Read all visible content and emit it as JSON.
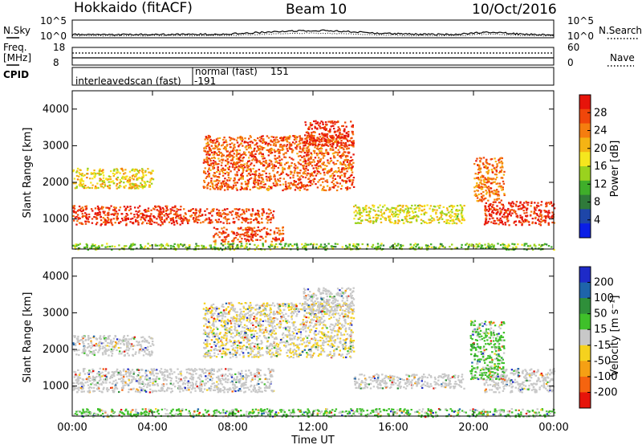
{
  "header": {
    "title": "Hokkaido (fitACF)",
    "beam": "Beam 10",
    "date": "10/Oct/2016"
  },
  "params": {
    "nsky_label": "N.Sky",
    "nsky_ticks": [
      "10^5",
      "10^0"
    ],
    "nsearch_label": "N.Search",
    "nsearch_ticks": [
      "10^5",
      "10^0"
    ],
    "freq_label": "Freq.",
    "freq_unit": "[MHz]",
    "freq_ticks": [
      "18",
      "8"
    ],
    "nave_label": "Nave",
    "nave_ticks": [
      "60",
      "0"
    ],
    "cpid_label": "CPID",
    "cpid_modes": [
      {
        "name": "interleavedscan (fast)",
        "id": "-191"
      },
      {
        "name": "normal (fast)",
        "id": "151"
      }
    ]
  },
  "chart_data": [
    {
      "type": "heatmap",
      "name": "power",
      "ylabel": "Slant Range [km]",
      "xlabel": "",
      "x_range_hours": [
        0,
        24
      ],
      "y_range_km": [
        180,
        4500
      ],
      "y_ticks": [
        "1000",
        "2000",
        "3000",
        "4000"
      ],
      "colorbar": {
        "label": "Power [dB]",
        "ticks": [
          "4",
          "8",
          "12",
          "16",
          "20",
          "24",
          "28"
        ],
        "colors": [
          "#0a1ee6",
          "#1e46a8",
          "#2f7a3a",
          "#3fae2a",
          "#9ad21e",
          "#f5e61e",
          "#f5b414",
          "#f57d0f",
          "#f0460a",
          "#e6140a"
        ]
      },
      "echo_regions": [
        {
          "t0": 0.0,
          "t1": 5.5,
          "r0": 850,
          "r1": 1380,
          "level": 0.95
        },
        {
          "t0": 5.5,
          "t1": 10.0,
          "r0": 900,
          "r1": 1300,
          "level": 0.9
        },
        {
          "t0": 0.0,
          "t1": 4.0,
          "r0": 1850,
          "r1": 2400,
          "level": 0.6
        },
        {
          "t0": 6.5,
          "t1": 14.0,
          "r0": 1800,
          "r1": 3300,
          "level": 0.85
        },
        {
          "t0": 11.5,
          "t1": 14.0,
          "r0": 3000,
          "r1": 3700,
          "level": 0.95
        },
        {
          "t0": 14.0,
          "t1": 19.5,
          "r0": 900,
          "r1": 1400,
          "level": 0.55
        },
        {
          "t0": 20.5,
          "t1": 24.0,
          "r0": 850,
          "r1": 1500,
          "level": 0.95
        },
        {
          "t0": 20.0,
          "t1": 21.5,
          "r0": 1500,
          "r1": 2700,
          "level": 0.8
        },
        {
          "t0": 0.0,
          "t1": 24.0,
          "r0": 180,
          "r1": 350,
          "level": 0.4
        },
        {
          "t0": 7.0,
          "t1": 10.5,
          "r0": 400,
          "r1": 800,
          "level": 0.9
        }
      ]
    },
    {
      "type": "heatmap",
      "name": "velocity",
      "ylabel": "Slant Range [km]",
      "xlabel": "Time UT",
      "x_range_hours": [
        0,
        24
      ],
      "x_ticks": [
        "00:00",
        "04:00",
        "08:00",
        "12:00",
        "16:00",
        "20:00",
        "00:00"
      ],
      "y_range_km": [
        180,
        4500
      ],
      "y_ticks": [
        "1000",
        "2000",
        "3000",
        "4000"
      ],
      "colorbar": {
        "label": "Velocity [m s⁻¹]",
        "ticks": [
          "200",
          "100",
          "50",
          "15",
          "-15",
          "-50",
          "-100",
          "-200"
        ],
        "colors": [
          "#1e2ac8",
          "#1e64aa",
          "#2f8f3a",
          "#3fc02a",
          "#c8c8c8",
          "#f5d21e",
          "#f5a014",
          "#f5640f",
          "#e6140a"
        ]
      },
      "echo_regions": [
        {
          "t0": 0.0,
          "t1": 10.0,
          "r0": 850,
          "r1": 1500,
          "vel": 0
        },
        {
          "t0": 0.0,
          "t1": 4.0,
          "r0": 1850,
          "r1": 2400,
          "vel": 0
        },
        {
          "t0": 6.5,
          "t1": 14.0,
          "r0": 1800,
          "r1": 3300,
          "vel": -20
        },
        {
          "t0": 11.5,
          "t1": 14.0,
          "r0": 3000,
          "r1": 3700,
          "vel": 0
        },
        {
          "t0": 14.0,
          "t1": 19.5,
          "r0": 950,
          "r1": 1350,
          "vel": 0
        },
        {
          "t0": 20.5,
          "t1": 24.0,
          "r0": 850,
          "r1": 1500,
          "vel": 0
        },
        {
          "t0": 19.8,
          "t1": 21.5,
          "r0": 1200,
          "r1": 2800,
          "vel": 40
        },
        {
          "t0": 0.0,
          "t1": 24.0,
          "r0": 180,
          "r1": 400,
          "vel": 40
        }
      ]
    }
  ]
}
